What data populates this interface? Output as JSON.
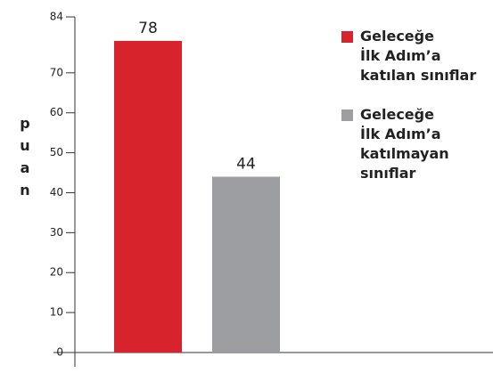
{
  "chart_data": {
    "type": "bar",
    "y_label": "puan",
    "categories": [
      null
    ],
    "series": [
      {
        "name": "Geleceğe\nİlk Adım’a\nkatılan sınıflar",
        "color": "#d6232c",
        "values": [
          78
        ]
      },
      {
        "name": "Geleceğe\nİlk Adım’a\nkatılmayan\nsınıflar",
        "color": "#9d9ea2",
        "values": [
          44
        ]
      }
    ],
    "ylim": [
      0,
      84
    ],
    "yticks": [
      0,
      10,
      20,
      30,
      40,
      50,
      60,
      70,
      84
    ],
    "grid": false,
    "legend": "right"
  }
}
